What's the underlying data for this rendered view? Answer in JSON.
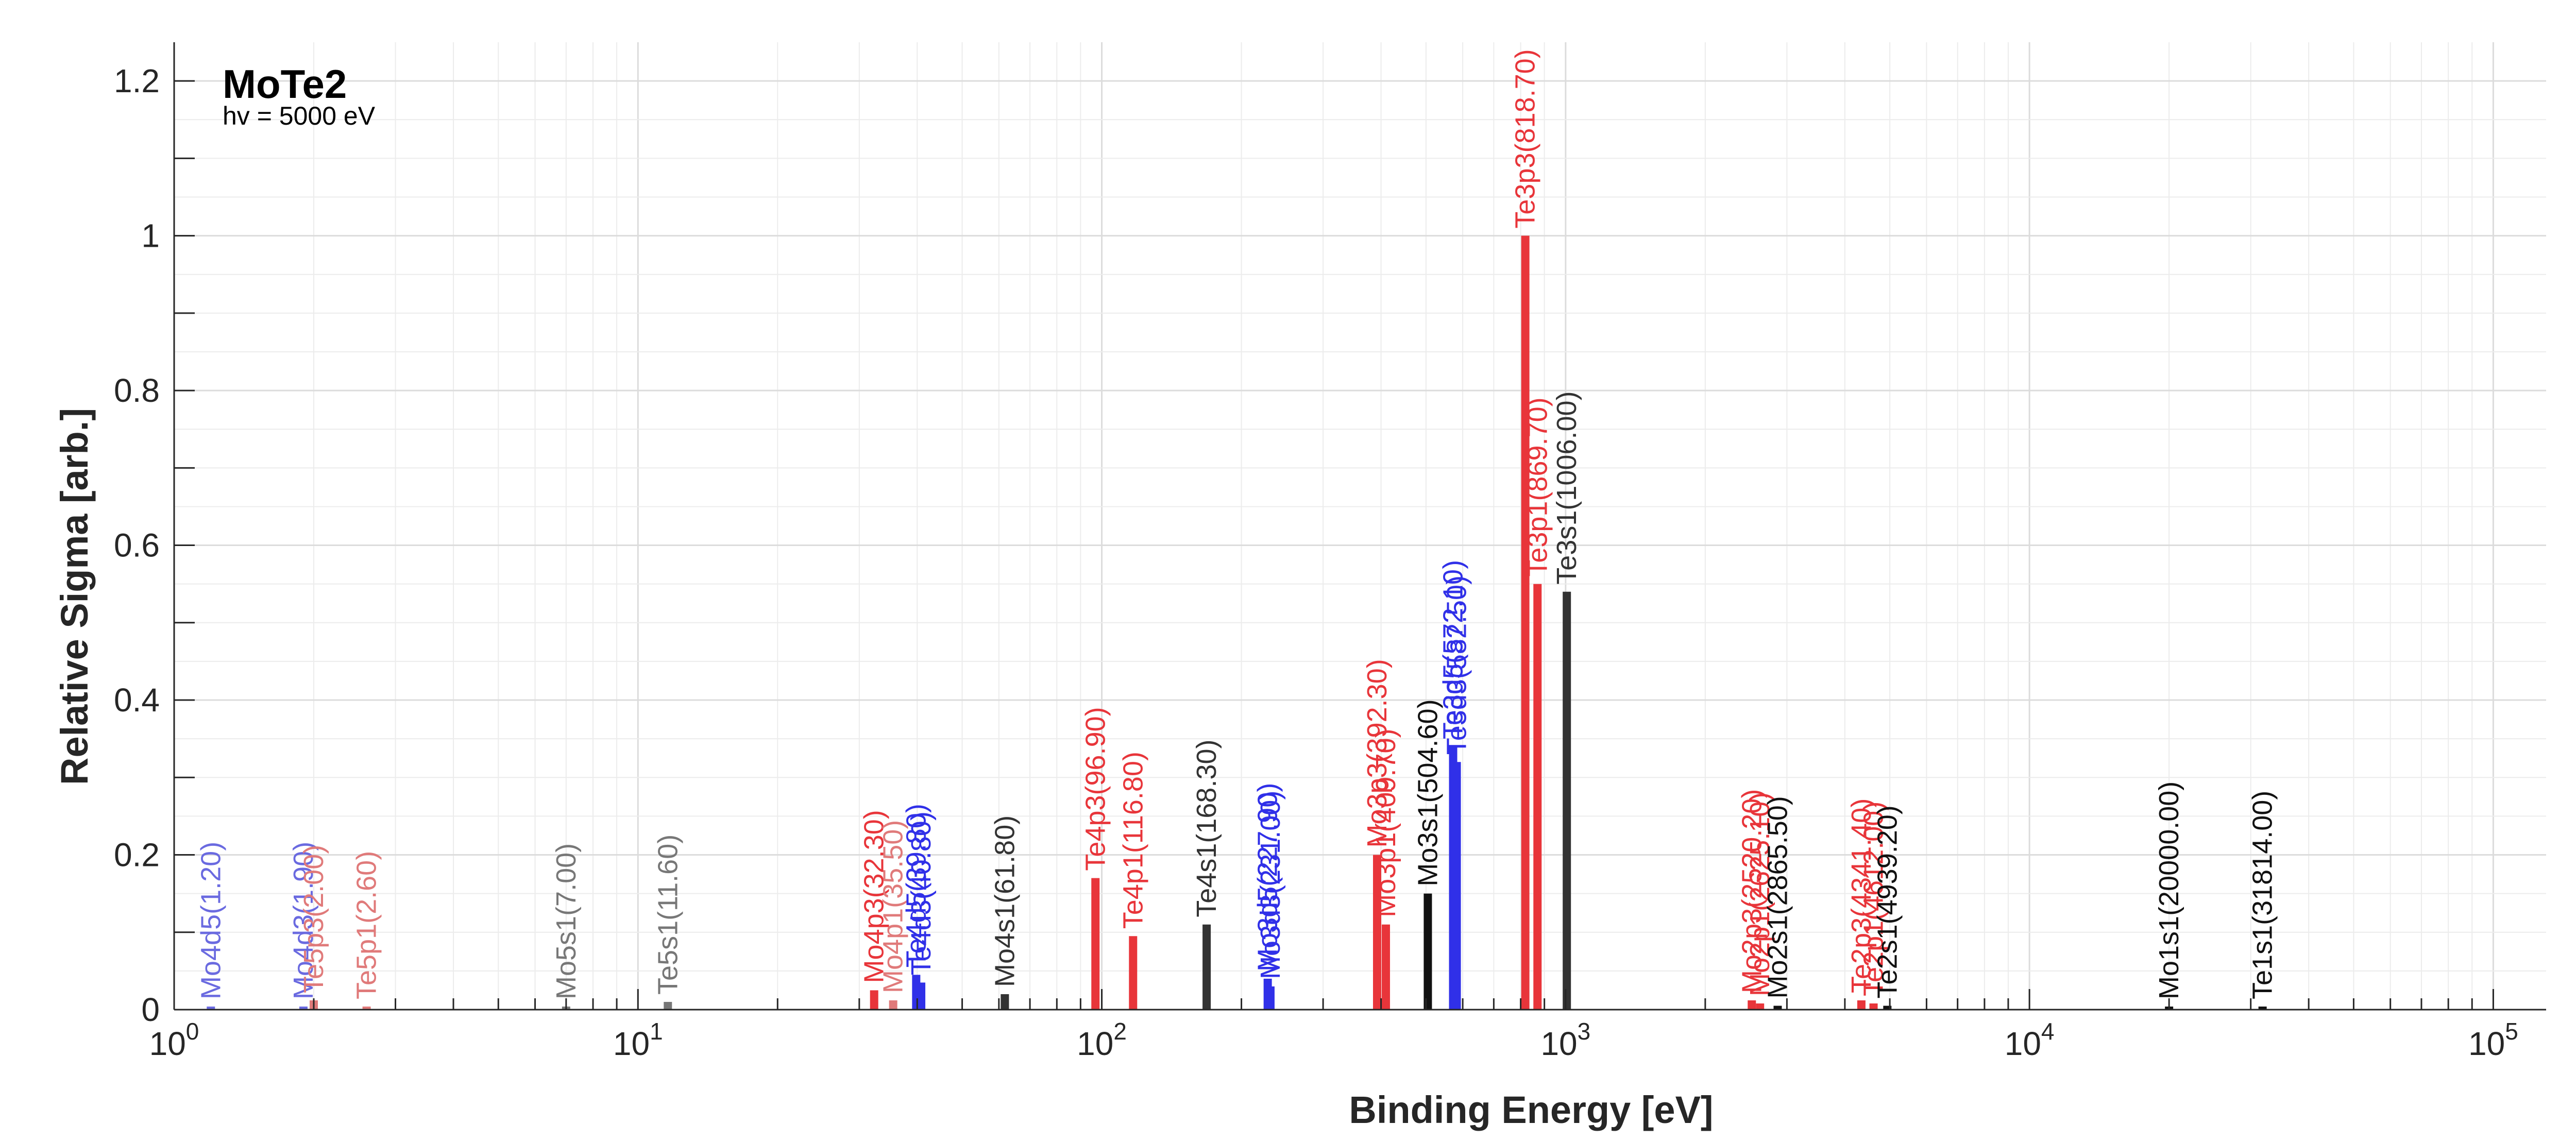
{
  "chart_data": {
    "type": "bar",
    "title": "MoTe2",
    "subtitle": "hv = 5000 eV",
    "xlabel": "Binding Energy [eV]",
    "ylabel": "Relative Sigma [arb.]",
    "xscale": "log",
    "xlim": [
      1,
      130000
    ],
    "ylim": [
      0,
      1.25
    ],
    "grid": true,
    "xticks": [
      {
        "value": 1,
        "base": "10",
        "exp": "0"
      },
      {
        "value": 10,
        "base": "10",
        "exp": "1"
      },
      {
        "value": 100,
        "base": "10",
        "exp": "2"
      },
      {
        "value": 1000,
        "base": "10",
        "exp": "3"
      },
      {
        "value": 10000,
        "base": "10",
        "exp": "4"
      },
      {
        "value": 100000,
        "base": "10",
        "exp": "5"
      }
    ],
    "yticks": [
      {
        "value": 0,
        "label": "0"
      },
      {
        "value": 0.2,
        "label": "0.2"
      },
      {
        "value": 0.4,
        "label": "0.4"
      },
      {
        "value": 0.6,
        "label": "0.6"
      },
      {
        "value": 0.8,
        "label": "0.8"
      },
      {
        "value": 1.0,
        "label": "1"
      },
      {
        "value": 1.2,
        "label": "1.2"
      }
    ],
    "colors": {
      "red": "#e8353a",
      "blue": "#3030e8",
      "dark": "#333333",
      "black": "#111111",
      "faded_red": "#e07a7a",
      "faded_blue": "#6a6ae0",
      "gray": "#777777"
    },
    "peaks": [
      {
        "label": "Mo4d5(1.20)",
        "energy": 1.2,
        "sigma": 0.003,
        "color": "faded_blue"
      },
      {
        "label": "Mo4d3(1.90)",
        "energy": 1.9,
        "sigma": 0.003,
        "color": "faded_blue"
      },
      {
        "label": "Te5p3(2.00)",
        "energy": 2.0,
        "sigma": 0.012,
        "color": "faded_red"
      },
      {
        "label": "Te5p1(2.60)",
        "energy": 2.6,
        "sigma": 0.003,
        "color": "faded_red"
      },
      {
        "label": "Mo5s1(7.00)",
        "energy": 7.0,
        "sigma": 0.002,
        "color": "gray"
      },
      {
        "label": "Te5s1(11.60)",
        "energy": 11.6,
        "sigma": 0.01,
        "color": "gray"
      },
      {
        "label": "Mo4p3(32.30)",
        "energy": 32.3,
        "sigma": 0.025,
        "color": "red"
      },
      {
        "label": "Mo4p1(35.50)",
        "energy": 35.5,
        "sigma": 0.012,
        "color": "faded_red"
      },
      {
        "label": "Te4d5(39.80)",
        "energy": 39.8,
        "sigma": 0.045,
        "color": "blue"
      },
      {
        "label": "Te4d3(40.80)",
        "energy": 40.8,
        "sigma": 0.035,
        "color": "blue"
      },
      {
        "label": "Mo4s1(61.80)",
        "energy": 61.8,
        "sigma": 0.02,
        "color": "dark"
      },
      {
        "label": "Te4p3(96.90)",
        "energy": 96.9,
        "sigma": 0.17,
        "color": "red"
      },
      {
        "label": "Te4p1(116.80)",
        "energy": 116.8,
        "sigma": 0.095,
        "color": "red"
      },
      {
        "label": "Te4s1(168.30)",
        "energy": 168.3,
        "sigma": 0.11,
        "color": "dark"
      },
      {
        "label": "Mo3d5(227.90)",
        "energy": 227.9,
        "sigma": 0.04,
        "color": "blue"
      },
      {
        "label": "Mo3d3(231.00)",
        "energy": 231.0,
        "sigma": 0.03,
        "color": "blue"
      },
      {
        "label": "Mo3p3(392.30)",
        "energy": 392.3,
        "sigma": 0.2,
        "color": "red"
      },
      {
        "label": "Mo3p1(409.70)",
        "energy": 409.7,
        "sigma": 0.11,
        "color": "red"
      },
      {
        "label": "Mo3s1(504.60)",
        "energy": 504.6,
        "sigma": 0.15,
        "color": "black"
      },
      {
        "label": "Te3d5(572.10)",
        "energy": 572.1,
        "sigma": 0.34,
        "color": "blue"
      },
      {
        "label": "Te3d3(582.50)",
        "energy": 582.5,
        "sigma": 0.32,
        "color": "blue"
      },
      {
        "label": "Te3p3(818.70)",
        "energy": 818.7,
        "sigma": 1.0,
        "color": "red"
      },
      {
        "label": "Te3p1(869.70)",
        "energy": 869.7,
        "sigma": 0.55,
        "color": "red"
      },
      {
        "label": "Te3s1(1006.00)",
        "energy": 1006.0,
        "sigma": 0.54,
        "color": "dark"
      },
      {
        "label": "Mo2p3(2520.20)",
        "energy": 2520.2,
        "sigma": 0.012,
        "color": "red"
      },
      {
        "label": "Mo2p1(2625.10)",
        "energy": 2625.1,
        "sigma": 0.008,
        "color": "red"
      },
      {
        "label": "Mo2s1(2865.50)",
        "energy": 2865.5,
        "sigma": 0.005,
        "color": "black"
      },
      {
        "label": "Te2p3(4341.40)",
        "energy": 4341.4,
        "sigma": 0.012,
        "color": "red"
      },
      {
        "label": "Te2p1(4612.00)",
        "energy": 4612.0,
        "sigma": 0.008,
        "color": "red"
      },
      {
        "label": "Te2s1(4939.20)",
        "energy": 4939.2,
        "sigma": 0.005,
        "color": "black"
      },
      {
        "label": "Mo1s1(20000.00)",
        "energy": 20000.0,
        "sigma": 0.002,
        "color": "black"
      },
      {
        "label": "Te1s1(31814.00)",
        "energy": 31814.0,
        "sigma": 0.002,
        "color": "black"
      }
    ]
  }
}
